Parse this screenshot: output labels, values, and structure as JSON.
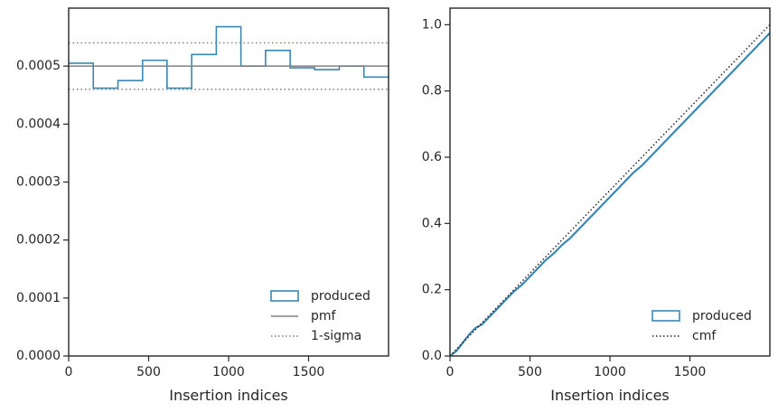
{
  "chart_data": [
    {
      "type": "line",
      "subtype": "step-histogram",
      "title": "",
      "xlabel": "Insertion indices",
      "ylabel": "",
      "xlim": [
        0,
        2000
      ],
      "ylim": [
        0,
        0.0006
      ],
      "xticks": [
        0,
        500,
        1000,
        1500
      ],
      "xtick_labels": [
        "0",
        "500",
        "1000",
        "1500"
      ],
      "yticks": [
        0,
        0.0001,
        0.0002,
        0.0003,
        0.0004,
        0.0005
      ],
      "ytick_labels": [
        "0.0000",
        "0.0001",
        "0.0002",
        "0.0003",
        "0.0004",
        "0.0005"
      ],
      "grid": false,
      "legend_position": "lower-right",
      "bin_edges": [
        0,
        154,
        308,
        462,
        615,
        769,
        923,
        1077,
        1231,
        1385,
        1538,
        1692,
        1846,
        2000
      ],
      "series": [
        {
          "name": "produced",
          "kind": "step",
          "color": "#3a87b4",
          "values": [
            0.000505,
            0.000462,
            0.000475,
            0.00051,
            0.000462,
            0.00052,
            0.000568,
            0.0005,
            0.000527,
            0.000497,
            0.000494,
            0.0005,
            0.000481
          ]
        },
        {
          "name": "pmf",
          "kind": "hline",
          "color": "#808080",
          "value": 0.0005
        },
        {
          "name": "1-sigma",
          "kind": "hline-dotted",
          "color": "#808080",
          "values": [
            0.00054,
            0.00046
          ]
        }
      ]
    },
    {
      "type": "line",
      "title": "",
      "xlabel": "Insertion indices",
      "ylabel": "",
      "xlim": [
        0,
        2000
      ],
      "ylim": [
        0,
        1.05
      ],
      "xticks": [
        0,
        500,
        1000,
        1500
      ],
      "xtick_labels": [
        "0",
        "500",
        "1000",
        "1500"
      ],
      "yticks": [
        0,
        0.2,
        0.4,
        0.6,
        0.8,
        1.0
      ],
      "ytick_labels": [
        "0.0",
        "0.2",
        "0.4",
        "0.6",
        "0.8",
        "1.0"
      ],
      "grid": false,
      "legend_position": "lower-right",
      "series": [
        {
          "name": "produced",
          "kind": "line",
          "color": "#3a87b4",
          "x": [
            0,
            40,
            80,
            120,
            160,
            200,
            250,
            300,
            350,
            400,
            450,
            500,
            550,
            600,
            650,
            700,
            750,
            800,
            850,
            900,
            950,
            1000,
            1050,
            1100,
            1150,
            1200,
            1250,
            1300,
            1350,
            1400,
            1450,
            1500,
            1550,
            1600,
            1650,
            1700,
            1750,
            1800,
            1850,
            1900,
            1950,
            2000
          ],
          "y": [
            0,
            0.015,
            0.04,
            0.065,
            0.085,
            0.095,
            0.12,
            0.145,
            0.17,
            0.195,
            0.215,
            0.24,
            0.265,
            0.29,
            0.31,
            0.335,
            0.355,
            0.38,
            0.405,
            0.43,
            0.455,
            0.48,
            0.505,
            0.53,
            0.555,
            0.575,
            0.6,
            0.625,
            0.65,
            0.675,
            0.7,
            0.725,
            0.75,
            0.775,
            0.8,
            0.825,
            0.85,
            0.875,
            0.9,
            0.925,
            0.95,
            0.975
          ]
        },
        {
          "name": "cmf",
          "kind": "dotted-line",
          "color": "#262626",
          "x": [
            0,
            2000
          ],
          "y": [
            0,
            1.0
          ]
        }
      ]
    }
  ]
}
